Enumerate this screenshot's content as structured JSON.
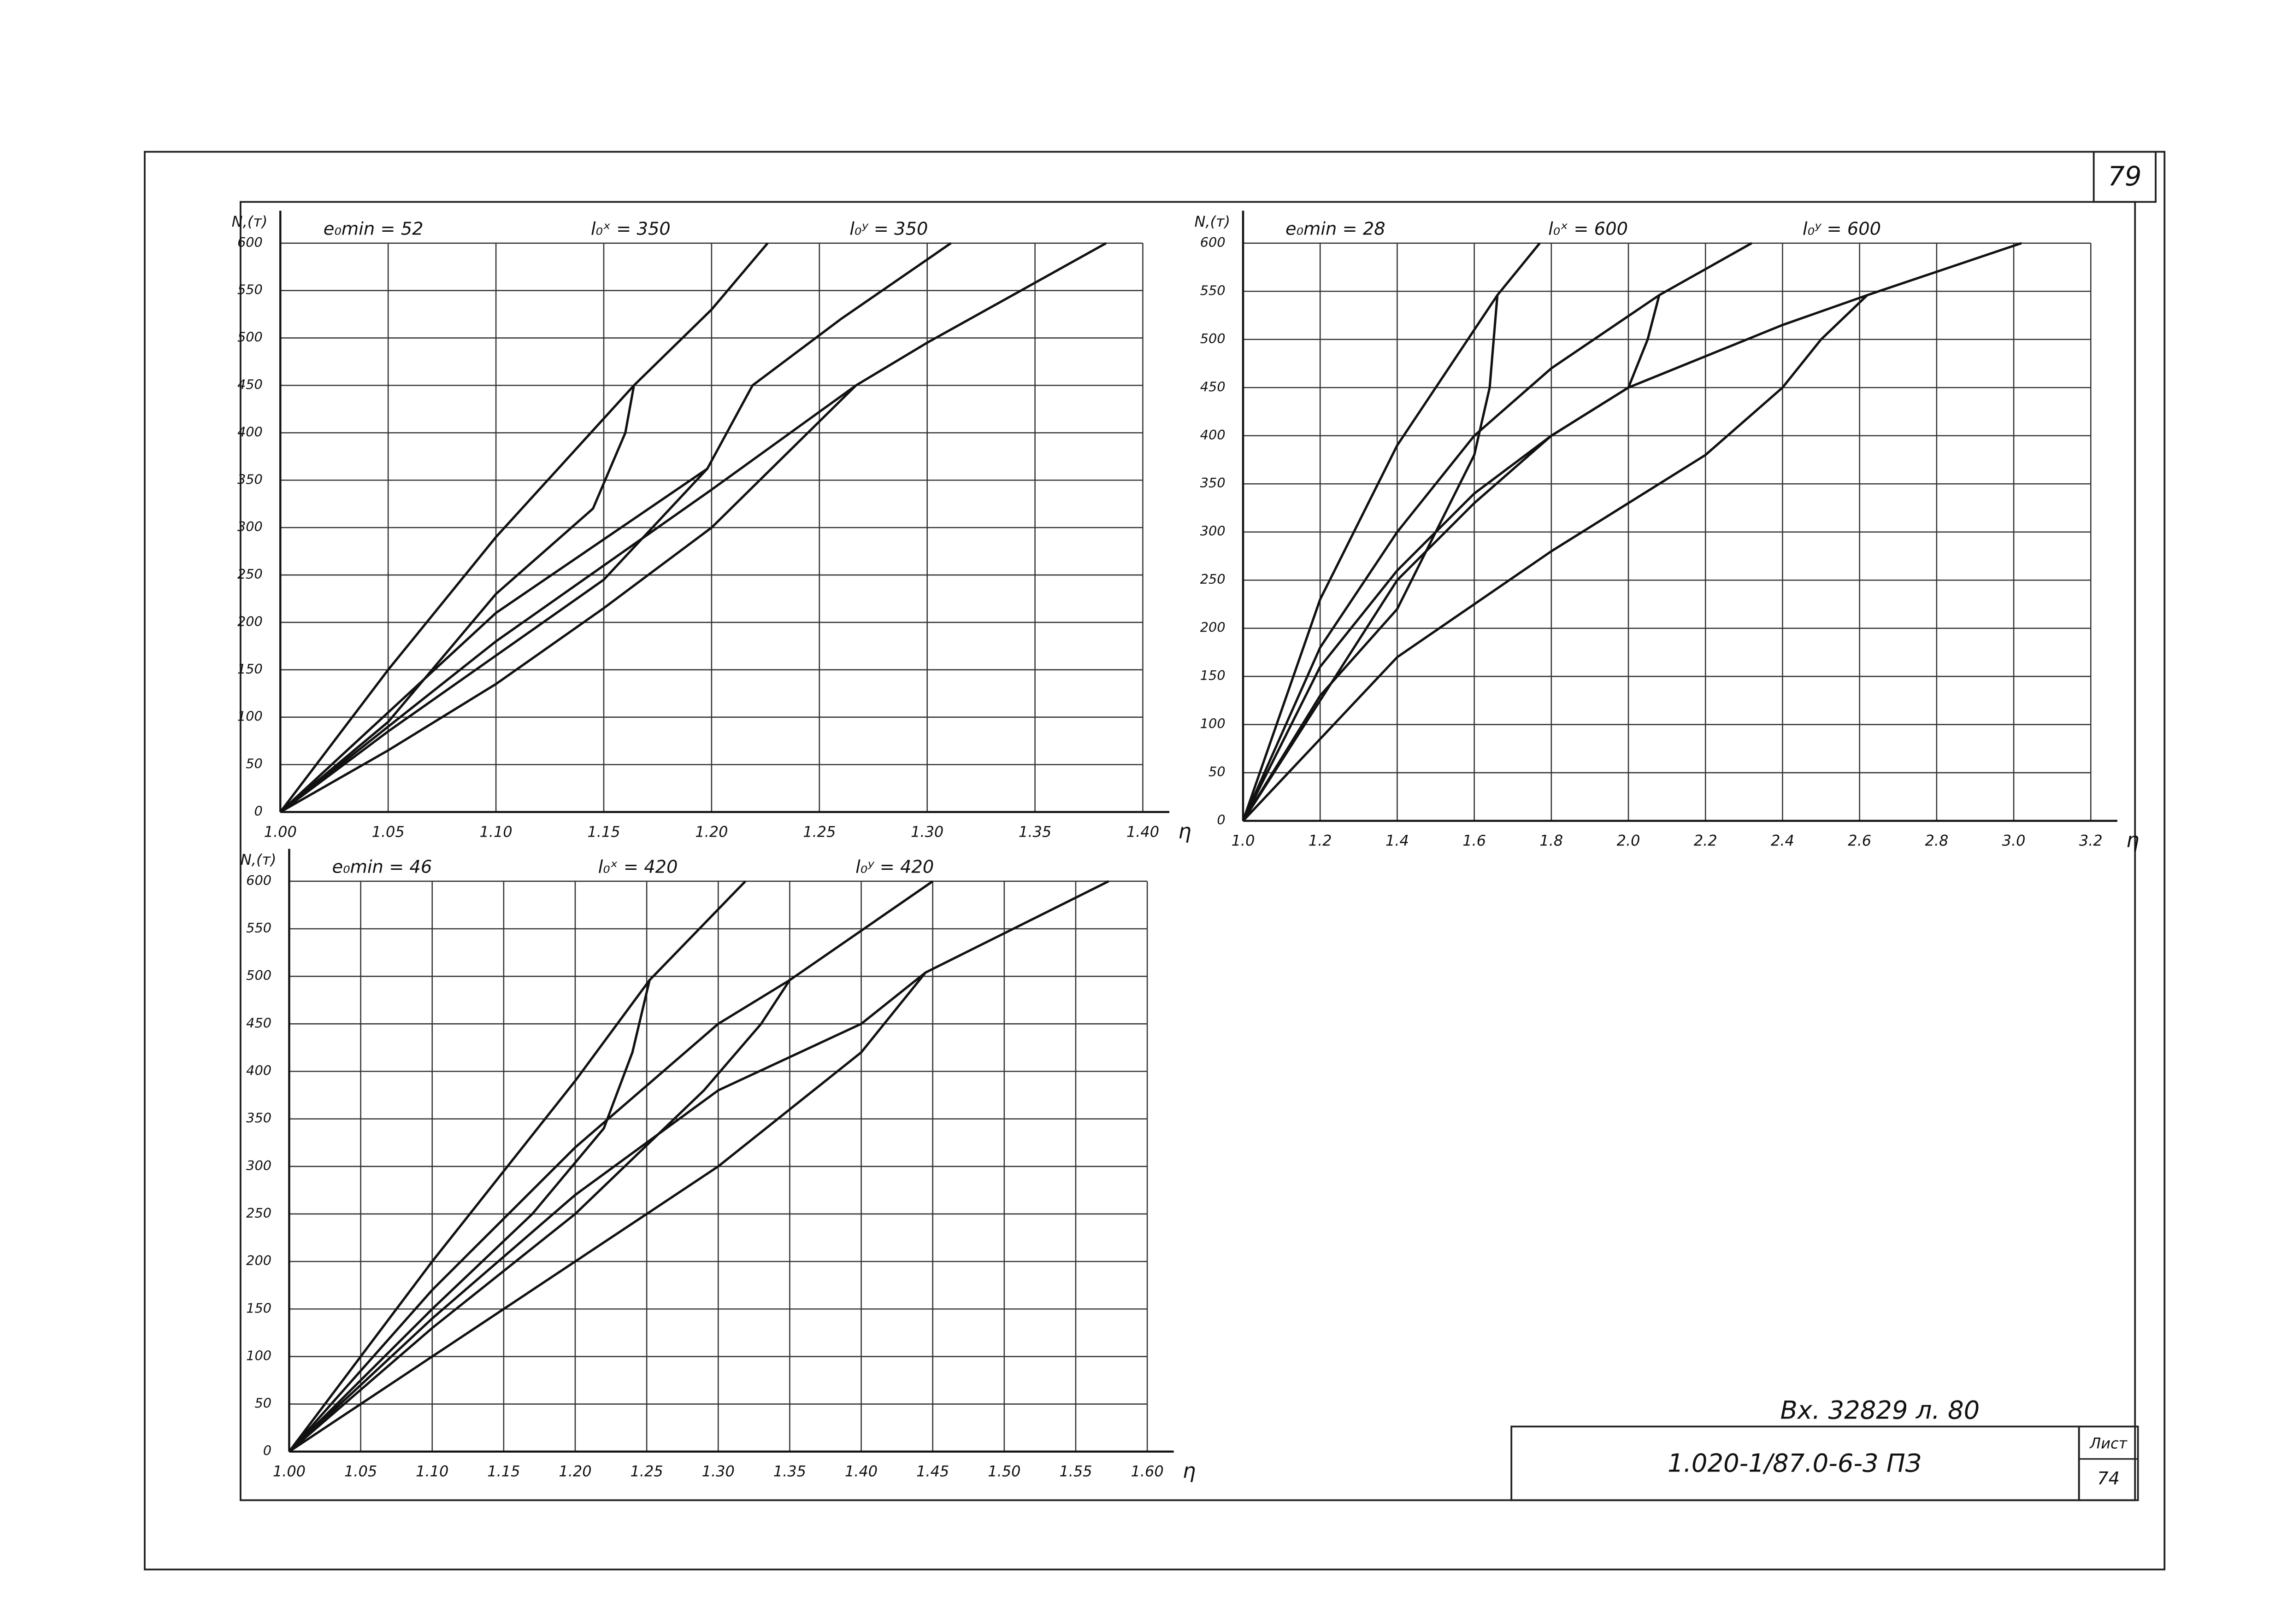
{
  "sheet_number": "79",
  "title_block": {
    "inventory": "Вх. 32829 л. 80",
    "code": "1.020-1/87.0-6-3 ПЗ",
    "sheet_label": "Лист",
    "sheet": "74"
  },
  "chart_data": [
    {
      "type": "line",
      "y_label": "N,(т)",
      "x_label": "η",
      "annotations": [
        "e₀min = 52",
        "l₀ˣ = 350",
        "l₀ʸ = 350"
      ],
      "xlim": [
        1,
        1.4
      ],
      "ylim": [
        0,
        600
      ],
      "grid": true,
      "color": "#111111",
      "xticks": [
        {
          "value": 1,
          "label": "1.00"
        },
        1.05,
        {
          "value": 1.1,
          "label": "1.10"
        },
        1.15,
        {
          "value": 1.2,
          "label": "1.20"
        },
        1.25,
        {
          "value": 1.3,
          "label": "1.30"
        },
        1.35,
        {
          "value": 1.4,
          "label": "1.40"
        }
      ],
      "yticks": [
        0,
        50,
        100,
        150,
        200,
        250,
        300,
        350,
        400,
        450,
        500,
        550,
        600
      ],
      "series": [
        {
          "x": [
            1,
            1.05,
            1.1,
            1.164,
            1.2,
            1.226
          ],
          "values": [
            0,
            150,
            290,
            450,
            530,
            600
          ]
        },
        {
          "x": [
            1,
            1.1,
            1.198,
            1.219,
            1.26,
            1.311
          ],
          "values": [
            0,
            210,
            362,
            450,
            520,
            600
          ]
        },
        {
          "x": [
            1,
            1.1,
            1.2,
            1.267,
            1.3,
            1.383
          ],
          "values": [
            0,
            180,
            340,
            450,
            495,
            600
          ]
        },
        {
          "x": [
            1,
            1.05,
            1.1,
            1.15,
            1.2,
            1.267
          ],
          "values": [
            0,
            65,
            135,
            215,
            300,
            450
          ]
        },
        {
          "x": [
            1,
            1.05,
            1.1,
            1.145,
            1.16,
            1.164
          ],
          "values": [
            0,
            95,
            230,
            320,
            400,
            450
          ]
        },
        {
          "x": [
            1,
            1.05,
            1.1,
            1.15,
            1.198
          ],
          "values": [
            0,
            85,
            165,
            245,
            362
          ]
        }
      ]
    },
    {
      "type": "line",
      "y_label": "N,(т)",
      "x_label": "η",
      "annotations": [
        "e₀min = 28",
        "l₀ˣ = 600",
        "l₀ʸ = 600"
      ],
      "xlim": [
        1,
        3.2
      ],
      "ylim": [
        0,
        600
      ],
      "grid": true,
      "color": "#111111",
      "xticks": [
        {
          "value": 1,
          "label": "1.0"
        },
        1.2,
        1.4,
        1.6,
        1.8,
        {
          "value": 2,
          "label": "2.0"
        },
        2.2,
        2.4,
        2.6,
        2.8,
        {
          "value": 3,
          "label": "3.0"
        },
        3.2
      ],
      "yticks": [
        0,
        50,
        100,
        150,
        200,
        250,
        300,
        350,
        400,
        450,
        500,
        550,
        600
      ],
      "series": [
        {
          "x": [
            1,
            1.2,
            1.4,
            1.66,
            1.77
          ],
          "values": [
            0,
            230,
            390,
            546,
            600
          ]
        },
        {
          "x": [
            1,
            1.2,
            1.4,
            1.6,
            1.8,
            2.08,
            2.32
          ],
          "values": [
            0,
            180,
            300,
            400,
            470,
            546,
            600
          ]
        },
        {
          "x": [
            1,
            1.2,
            1.4,
            1.6,
            1.8,
            2,
            2.4,
            2.62,
            3.02
          ],
          "values": [
            0,
            160,
            260,
            340,
            400,
            450,
            515,
            546,
            600
          ]
        },
        {
          "x": [
            1,
            1.4,
            1.8,
            2.2,
            2.4,
            2.5,
            2.62
          ],
          "values": [
            0,
            170,
            280,
            380,
            450,
            500,
            546
          ]
        },
        {
          "x": [
            1,
            1.2,
            1.4,
            1.5,
            1.6,
            1.64,
            1.66
          ],
          "values": [
            0,
            130,
            220,
            300,
            380,
            450,
            546
          ]
        },
        {
          "x": [
            1,
            1.4,
            1.6,
            1.8,
            2,
            2.05,
            2.08
          ],
          "values": [
            0,
            250,
            330,
            400,
            450,
            500,
            546
          ]
        }
      ]
    },
    {
      "type": "line",
      "y_label": "N,(т)",
      "x_label": "η",
      "annotations": [
        "e₀min = 46",
        "l₀ˣ = 420",
        "l₀ʸ = 420"
      ],
      "xlim": [
        1,
        1.6
      ],
      "ylim": [
        0,
        600
      ],
      "grid": true,
      "color": "#111111",
      "xticks": [
        {
          "value": 1,
          "label": "1.00"
        },
        1.05,
        {
          "value": 1.1,
          "label": "1.10"
        },
        1.15,
        {
          "value": 1.2,
          "label": "1.20"
        },
        1.25,
        {
          "value": 1.3,
          "label": "1.30"
        },
        1.35,
        {
          "value": 1.4,
          "label": "1.40"
        },
        1.45,
        {
          "value": 1.5,
          "label": "1.50"
        },
        1.55,
        {
          "value": 1.6,
          "label": "1.60"
        }
      ],
      "yticks": [
        0,
        50,
        100,
        150,
        200,
        250,
        300,
        350,
        400,
        450,
        500,
        550,
        600
      ],
      "series": [
        {
          "x": [
            1,
            1.1,
            1.2,
            1.252,
            1.319
          ],
          "values": [
            0,
            200,
            390,
            496,
            600
          ]
        },
        {
          "x": [
            1,
            1.1,
            1.2,
            1.3,
            1.35,
            1.45
          ],
          "values": [
            0,
            170,
            320,
            450,
            496,
            600
          ]
        },
        {
          "x": [
            1,
            1.1,
            1.2,
            1.3,
            1.4,
            1.445,
            1.573
          ],
          "values": [
            0,
            140,
            270,
            380,
            450,
            504,
            600
          ]
        },
        {
          "x": [
            1,
            1.1,
            1.2,
            1.3,
            1.4,
            1.445
          ],
          "values": [
            0,
            100,
            200,
            300,
            420,
            504
          ]
        },
        {
          "x": [
            1,
            1.1,
            1.17,
            1.22,
            1.24,
            1.252
          ],
          "values": [
            0,
            150,
            250,
            340,
            420,
            496
          ]
        },
        {
          "x": [
            1,
            1.1,
            1.2,
            1.29,
            1.33,
            1.35
          ],
          "values": [
            0,
            130,
            250,
            380,
            450,
            496
          ]
        }
      ]
    }
  ]
}
